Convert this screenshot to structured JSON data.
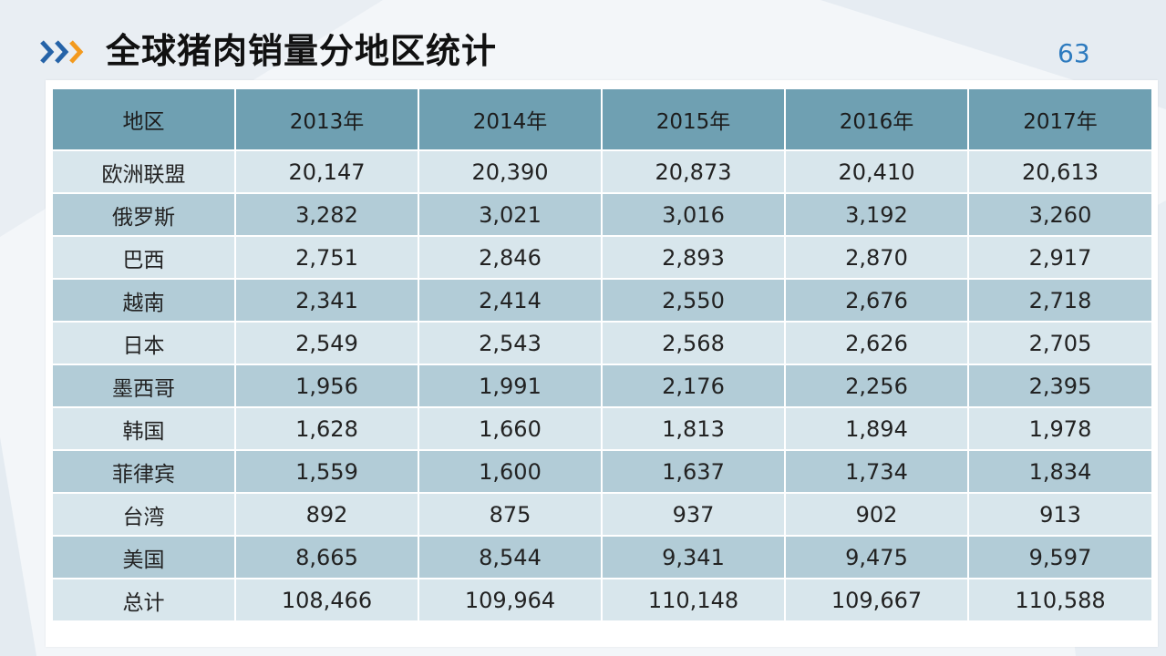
{
  "slide": {
    "title": "全球猪肉销量分地区统计",
    "page_number": "63"
  },
  "colors": {
    "chevron_dark": "#2563a8",
    "chevron_orange": "#f39a1e",
    "header_bg": "#6fa0b2",
    "row_light": "#d8e6ec",
    "row_dark": "#b2ccd7",
    "page_number": "#2e7bbf"
  },
  "table": {
    "columns": [
      "地区",
      "2013年",
      "2014年",
      "2015年",
      "2016年",
      "2017年"
    ],
    "rows": [
      [
        "欧洲联盟",
        "20,147",
        "20,390",
        "20,873",
        "20,410",
        "20,613"
      ],
      [
        "俄罗斯",
        "3,282",
        "3,021",
        "3,016",
        "3,192",
        "3,260"
      ],
      [
        "巴西",
        "2,751",
        "2,846",
        "2,893",
        "2,870",
        "2,917"
      ],
      [
        "越南",
        "2,341",
        "2,414",
        "2,550",
        "2,676",
        "2,718"
      ],
      [
        "日本",
        "2,549",
        "2,543",
        "2,568",
        "2,626",
        "2,705"
      ],
      [
        "墨西哥",
        "1,956",
        "1,991",
        "2,176",
        "2,256",
        "2,395"
      ],
      [
        "韩国",
        "1,628",
        "1,660",
        "1,813",
        "1,894",
        "1,978"
      ],
      [
        "菲律宾",
        "1,559",
        "1,600",
        "1,637",
        "1,734",
        "1,834"
      ],
      [
        "台湾",
        "892",
        "875",
        "937",
        "902",
        "913"
      ],
      [
        "美国",
        "8,665",
        "8,544",
        "9,341",
        "9,475",
        "9,597"
      ],
      [
        "总计",
        "108,466",
        "109,964",
        "110,148",
        "109,667",
        "110,588"
      ]
    ]
  }
}
